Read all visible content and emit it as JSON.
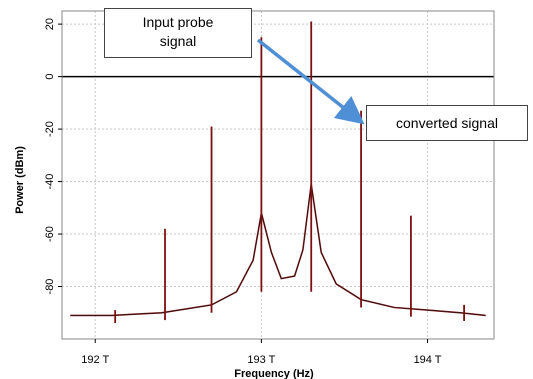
{
  "chart_data": {
    "type": "line",
    "title": "",
    "xlabel": "Frequency (Hz)",
    "ylabel": "Power (dBm)",
    "xlim": [
      191.8,
      194.4
    ],
    "ylim": [
      -100,
      25
    ],
    "x_ticks": [
      192,
      193,
      194
    ],
    "x_tick_labels": [
      "192 T",
      "193 T",
      "194 T"
    ],
    "y_ticks": [
      20,
      0,
      -20,
      -40,
      -60,
      -80
    ],
    "y_tick_labels": [
      "20",
      "0",
      "-20",
      "-40",
      "-60",
      "-80"
    ],
    "grid": true,
    "zero_line": 0,
    "noise_floor": {
      "x": [
        191.85,
        192.1,
        192.4,
        192.7,
        192.85,
        192.95,
        193.0,
        193.06,
        193.12,
        193.2,
        193.25,
        193.3,
        193.36,
        193.45,
        193.6,
        193.8,
        194.0,
        194.2,
        194.35
      ],
      "y": [
        -91,
        -91,
        -90,
        -87,
        -82,
        -70,
        -52,
        -67,
        -77,
        -76,
        -66,
        -41,
        -67,
        -79,
        -85,
        -88,
        -89,
        -90,
        -91
      ]
    },
    "peaks": {
      "x": [
        192.12,
        192.42,
        192.7,
        193.0,
        193.3,
        193.6,
        193.9,
        194.22
      ],
      "y": [
        -89,
        -58,
        -19,
        15,
        21,
        -13,
        -53,
        -87
      ]
    },
    "annotations": [
      {
        "text": "Input probe signal",
        "target_x": 193.0
      },
      {
        "text": "converted signal",
        "target_x": 193.6
      }
    ],
    "colors": {
      "trace": "#8b1a1a",
      "peak": "#7a1010",
      "arrow": "#4f8fd6",
      "grid": "#c8c8c8"
    }
  },
  "annotations": {
    "probe_line1": "Input probe",
    "probe_line2": "signal",
    "converted": "converted signal"
  }
}
